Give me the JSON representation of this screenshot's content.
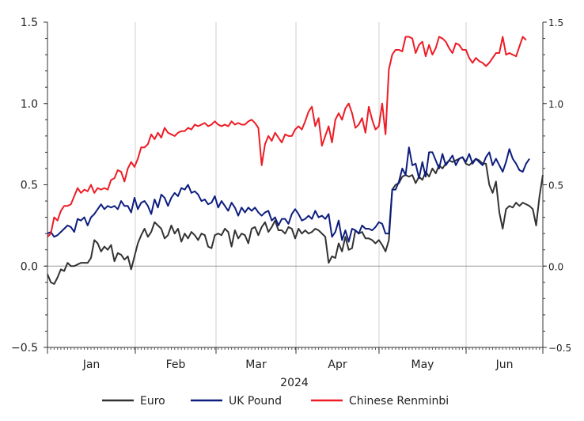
{
  "chart_data": {
    "type": "line",
    "xlabel": "2024",
    "ylim": [
      -0.5,
      1.5
    ],
    "y_ticks": [
      "1.5",
      "1.0",
      "0.5",
      "0.0",
      "−0.5"
    ],
    "y_ticks_right": [
      "1.5",
      "1.0",
      "0.5",
      "0.0",
      "−0.5"
    ],
    "months": [
      "Jan",
      "Feb",
      "Mar",
      "Apr",
      "May",
      "Jun"
    ],
    "grid": "vertical",
    "legend_position": "bottom",
    "series": [
      {
        "name": "Euro",
        "color": "#333333",
        "values": [
          -0.05,
          -0.1,
          -0.11,
          -0.07,
          -0.02,
          -0.03,
          0.02,
          0.0,
          0.0,
          0.01,
          0.02,
          0.02,
          0.02,
          0.05,
          0.16,
          0.14,
          0.09,
          0.12,
          0.1,
          0.13,
          0.03,
          0.08,
          0.07,
          0.04,
          0.06,
          -0.02,
          0.06,
          0.14,
          0.19,
          0.23,
          0.18,
          0.21,
          0.27,
          0.25,
          0.23,
          0.17,
          0.19,
          0.25,
          0.2,
          0.23,
          0.15,
          0.2,
          0.17,
          0.21,
          0.19,
          0.16,
          0.2,
          0.19,
          0.12,
          0.11,
          0.19,
          0.2,
          0.19,
          0.23,
          0.21,
          0.12,
          0.22,
          0.17,
          0.2,
          0.19,
          0.14,
          0.23,
          0.24,
          0.19,
          0.24,
          0.27,
          0.21,
          0.24,
          0.28,
          0.22,
          0.22,
          0.2,
          0.24,
          0.23,
          0.17,
          0.23,
          0.2,
          0.22,
          0.2,
          0.21,
          0.23,
          0.22,
          0.2,
          0.18,
          0.02,
          0.06,
          0.05,
          0.14,
          0.09,
          0.18,
          0.1,
          0.11,
          0.22,
          0.2,
          0.21,
          0.17,
          0.17,
          0.16,
          0.14,
          0.16,
          0.13,
          0.09,
          0.16,
          0.47,
          0.5,
          0.51,
          0.55,
          0.56,
          0.55,
          0.56,
          0.51,
          0.55,
          0.53,
          0.58,
          0.55,
          0.6,
          0.57,
          0.62,
          0.6,
          0.63,
          0.65,
          0.64,
          0.65,
          0.66,
          0.67,
          0.63,
          0.62,
          0.64,
          0.66,
          0.65,
          0.63,
          0.63,
          0.5,
          0.45,
          0.52,
          0.33,
          0.23,
          0.35,
          0.37,
          0.36,
          0.39,
          0.37,
          0.39,
          0.38,
          0.37,
          0.35,
          0.25,
          0.43,
          0.56
        ]
      },
      {
        "name": "UK Pound",
        "color": "#0d1d7e",
        "values": [
          0.2,
          0.21,
          0.18,
          0.19,
          0.21,
          0.23,
          0.25,
          0.24,
          0.21,
          0.29,
          0.28,
          0.3,
          0.25,
          0.3,
          0.32,
          0.35,
          0.38,
          0.35,
          0.37,
          0.36,
          0.37,
          0.35,
          0.4,
          0.37,
          0.37,
          0.33,
          0.42,
          0.35,
          0.39,
          0.4,
          0.37,
          0.32,
          0.41,
          0.36,
          0.44,
          0.42,
          0.37,
          0.42,
          0.45,
          0.43,
          0.48,
          0.47,
          0.5,
          0.45,
          0.46,
          0.44,
          0.4,
          0.41,
          0.38,
          0.39,
          0.43,
          0.36,
          0.4,
          0.37,
          0.34,
          0.39,
          0.36,
          0.31,
          0.36,
          0.33,
          0.36,
          0.34,
          0.36,
          0.33,
          0.31,
          0.33,
          0.34,
          0.28,
          0.3,
          0.25,
          0.29,
          0.29,
          0.26,
          0.32,
          0.35,
          0.32,
          0.28,
          0.29,
          0.31,
          0.29,
          0.34,
          0.3,
          0.31,
          0.29,
          0.32,
          0.18,
          0.21,
          0.28,
          0.16,
          0.22,
          0.15,
          0.23,
          0.22,
          0.2,
          0.25,
          0.23,
          0.23,
          0.22,
          0.24,
          0.27,
          0.26,
          0.2,
          0.2,
          0.47,
          0.47,
          0.52,
          0.6,
          0.56,
          0.73,
          0.62,
          0.63,
          0.54,
          0.64,
          0.55,
          0.7,
          0.7,
          0.65,
          0.6,
          0.69,
          0.62,
          0.65,
          0.68,
          0.62,
          0.66,
          0.67,
          0.64,
          0.69,
          0.63,
          0.66,
          0.64,
          0.62,
          0.67,
          0.7,
          0.62,
          0.66,
          0.62,
          0.58,
          0.64,
          0.72,
          0.66,
          0.63,
          0.59,
          0.58,
          0.63,
          0.66
        ]
      },
      {
        "name": "Chinese Renminbi",
        "color": "#ee1c25",
        "values": [
          0.18,
          0.2,
          0.3,
          0.28,
          0.34,
          0.37,
          0.37,
          0.38,
          0.43,
          0.48,
          0.45,
          0.47,
          0.46,
          0.5,
          0.45,
          0.48,
          0.47,
          0.48,
          0.47,
          0.53,
          0.54,
          0.59,
          0.58,
          0.52,
          0.6,
          0.64,
          0.61,
          0.66,
          0.73,
          0.73,
          0.75,
          0.81,
          0.78,
          0.82,
          0.79,
          0.85,
          0.82,
          0.81,
          0.8,
          0.82,
          0.83,
          0.83,
          0.85,
          0.84,
          0.87,
          0.86,
          0.87,
          0.88,
          0.86,
          0.87,
          0.89,
          0.87,
          0.86,
          0.87,
          0.86,
          0.89,
          0.87,
          0.88,
          0.87,
          0.87,
          0.89,
          0.9,
          0.88,
          0.85,
          0.62,
          0.75,
          0.8,
          0.77,
          0.82,
          0.79,
          0.76,
          0.81,
          0.8,
          0.8,
          0.84,
          0.86,
          0.84,
          0.89,
          0.95,
          0.98,
          0.86,
          0.91,
          0.74,
          0.8,
          0.86,
          0.76,
          0.9,
          0.94,
          0.9,
          0.97,
          1.0,
          0.94,
          0.85,
          0.87,
          0.91,
          0.82,
          0.98,
          0.9,
          0.84,
          0.86,
          1.0,
          0.81,
          1.21,
          1.3,
          1.33,
          1.33,
          1.32,
          1.41,
          1.41,
          1.4,
          1.31,
          1.36,
          1.38,
          1.29,
          1.36,
          1.3,
          1.34,
          1.41,
          1.4,
          1.38,
          1.34,
          1.31,
          1.37,
          1.36,
          1.33,
          1.33,
          1.28,
          1.25,
          1.28,
          1.26,
          1.25,
          1.23,
          1.25,
          1.28,
          1.31,
          1.31,
          1.41,
          1.3,
          1.31,
          1.3,
          1.29,
          1.35,
          1.41,
          1.39
        ]
      }
    ]
  }
}
